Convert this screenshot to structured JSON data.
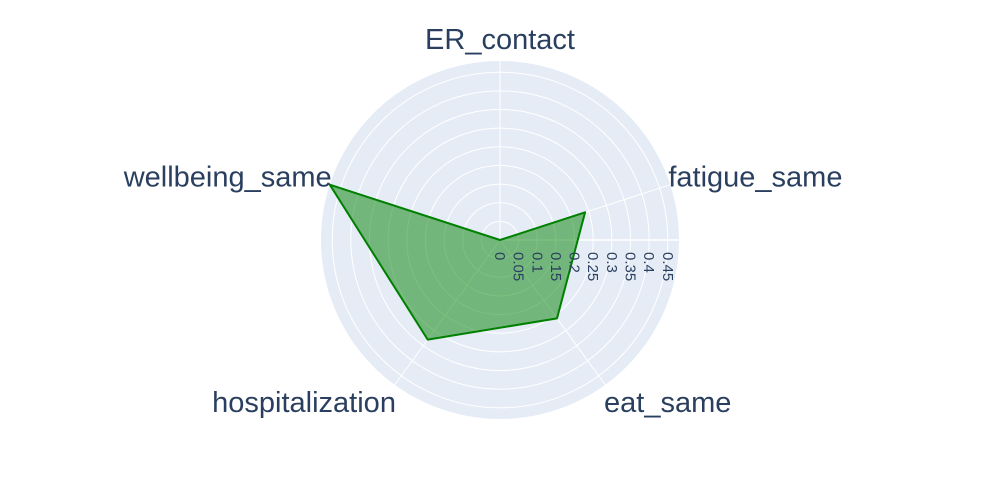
{
  "chart_data": {
    "type": "radar",
    "categories": [
      "ER_contact",
      "fatigue_same",
      "eat_same",
      "hospitalization",
      "wellbeing_same"
    ],
    "series": [
      {
        "values": [
          0.0,
          0.24,
          0.26,
          0.33,
          0.48
        ]
      }
    ],
    "radial_range": [
      0,
      0.48
    ],
    "radial_ticks": [
      0,
      0.05,
      0.1,
      0.15,
      0.2,
      0.25,
      0.3,
      0.35,
      0.4,
      0.45
    ],
    "radial_tick_labels": [
      "0",
      "0.05",
      "0.1",
      "0.15",
      "0.2",
      "0.25",
      "0.3",
      "0.35",
      "0.4",
      "0.45"
    ],
    "grid": true,
    "colors": {
      "background": "#e5ecf6",
      "grid": "#ffffff",
      "fill": "#008000",
      "fill_opacity": 0.5,
      "line": "#008000",
      "text": "#2a3f5f"
    }
  }
}
